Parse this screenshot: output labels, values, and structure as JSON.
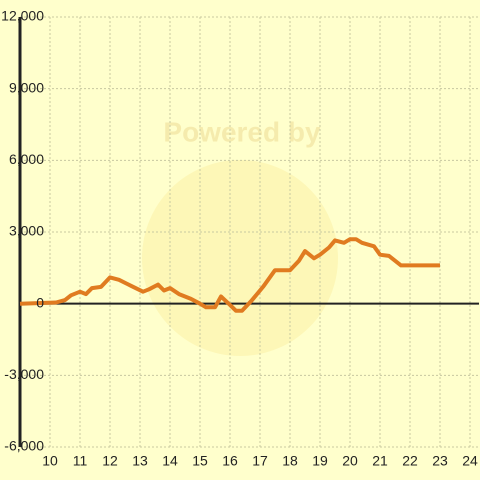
{
  "chart_data": {
    "type": "line",
    "watermark": "Powered by",
    "x": [
      9,
      10.2,
      10.5,
      10.7,
      11,
      11.2,
      11.4,
      11.7,
      12,
      12.3,
      12.7,
      13.1,
      13.3,
      13.6,
      13.8,
      14,
      14.3,
      14.7,
      15,
      15.2,
      15.5,
      15.7,
      16,
      16.2,
      16.4,
      16.7,
      17.1,
      17.5,
      18,
      18.3,
      18.5,
      18.8,
      19,
      19.3,
      19.5,
      19.8,
      20,
      20.2,
      20.4,
      20.8,
      21,
      21.3,
      21.7,
      22,
      23
    ],
    "series": [
      {
        "color": "#e07b20",
        "values": [
          0,
          50,
          150,
          350,
          500,
          400,
          650,
          700,
          1100,
          1000,
          750,
          500,
          600,
          800,
          550,
          650,
          400,
          200,
          0,
          -150,
          -150,
          300,
          -50,
          -300,
          -300,
          100,
          700,
          1400,
          1400,
          1800,
          2200,
          1900,
          2050,
          2350,
          2650,
          2550,
          2700,
          2700,
          2550,
          2400,
          2050,
          2000,
          1600,
          1600,
          1600
        ]
      }
    ],
    "xlim": [
      9,
      24.3
    ],
    "xticks": [
      10,
      11,
      12,
      13,
      14,
      15,
      16,
      17,
      18,
      19,
      20,
      21,
      22,
      23,
      24
    ],
    "ylim": [
      -6000,
      12000
    ],
    "yticks": [
      {
        "value": -6000,
        "label": "-6,000"
      },
      {
        "value": -3000,
        "label": "-3,000"
      },
      0,
      {
        "value": 3000,
        "label": "3,000"
      },
      {
        "value": 6000,
        "label": "6,000"
      },
      {
        "value": 9000,
        "label": "9,000"
      },
      {
        "value": 12000,
        "label": "12,000"
      }
    ],
    "grid": true
  }
}
